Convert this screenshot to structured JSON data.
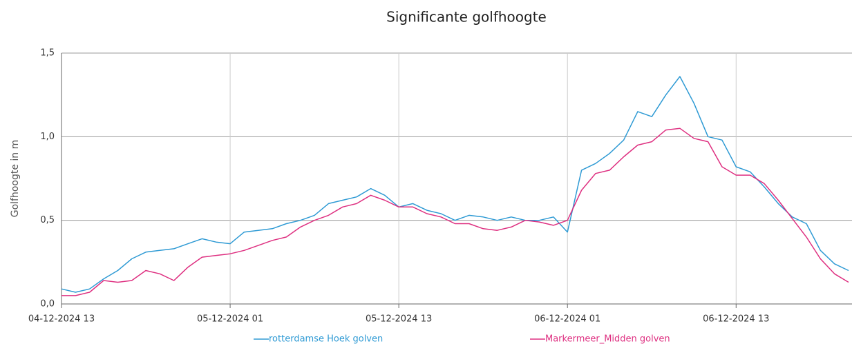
{
  "chart_data": {
    "type": "line",
    "title": "Significante golfhoogte",
    "y_label": "Golfhoogte in m",
    "categories": [
      "04-12-2024 13",
      null,
      null,
      null,
      null,
      null,
      null,
      null,
      null,
      null,
      null,
      null,
      "05-12-2024 01",
      null,
      null,
      null,
      null,
      null,
      null,
      null,
      null,
      null,
      null,
      null,
      "05-12-2024 13",
      null,
      null,
      null,
      null,
      null,
      null,
      null,
      null,
      null,
      null,
      null,
      "06-12-2024 01",
      null,
      null,
      null,
      null,
      null,
      null,
      null,
      null,
      null,
      null,
      null,
      "06-12-2024 13",
      null,
      null,
      null,
      null,
      null,
      null,
      null,
      null
    ],
    "series": [
      {
        "name": "rotterdamse Hoek golven",
        "color": "#2e9ad4",
        "values": [
          0.09,
          0.07,
          0.09,
          0.15,
          0.2,
          0.27,
          0.31,
          0.32,
          0.33,
          0.36,
          0.39,
          0.37,
          0.36,
          0.43,
          0.44,
          0.45,
          0.48,
          0.5,
          0.53,
          0.6,
          0.62,
          0.64,
          0.69,
          0.65,
          0.58,
          0.6,
          0.56,
          0.54,
          0.5,
          0.53,
          0.52,
          0.5,
          0.52,
          0.5,
          0.5,
          0.52,
          0.43,
          0.8,
          0.84,
          0.9,
          0.98,
          1.15,
          1.12,
          1.25,
          1.36,
          1.2,
          1.0,
          0.98,
          0.82,
          0.79,
          0.7,
          0.6,
          0.52,
          0.48,
          0.32,
          0.24,
          0.2
        ]
      },
      {
        "name": "Markermeer_Midden golven",
        "color": "#de2f80",
        "values": [
          0.05,
          0.05,
          0.07,
          0.14,
          0.13,
          0.14,
          0.2,
          0.18,
          0.14,
          0.22,
          0.28,
          0.29,
          0.3,
          0.32,
          0.35,
          0.38,
          0.4,
          0.46,
          0.5,
          0.53,
          0.58,
          0.6,
          0.65,
          0.62,
          0.58,
          0.58,
          0.54,
          0.52,
          0.48,
          0.48,
          0.45,
          0.44,
          0.46,
          0.5,
          0.49,
          0.47,
          0.5,
          0.68,
          0.78,
          0.8,
          0.88,
          0.95,
          0.97,
          1.04,
          1.05,
          0.99,
          0.97,
          0.82,
          0.77,
          0.77,
          0.72,
          0.62,
          0.51,
          0.4,
          0.27,
          0.18,
          0.13
        ]
      }
    ],
    "ylim": [
      0,
      1.5
    ],
    "yticks": [
      {
        "value": 0,
        "label": "0,0"
      },
      {
        "value": 0.5,
        "label": "0,5"
      },
      {
        "value": 1,
        "label": "1,0"
      },
      {
        "value": 1.5,
        "label": "1,5"
      }
    ],
    "grid": true,
    "legend": "bottom"
  }
}
